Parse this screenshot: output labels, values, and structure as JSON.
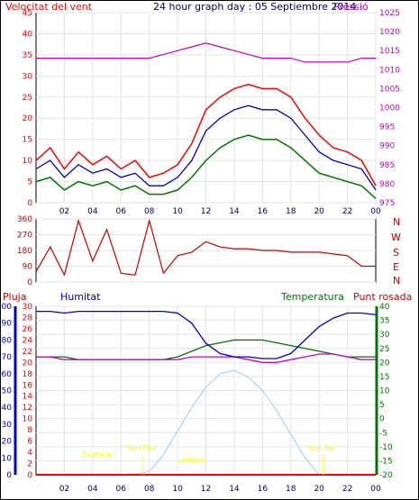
{
  "colors": {
    "wind_avg": "#0000cc",
    "wind_gust": "#ff0000",
    "wind_low": "#007700",
    "pressure": "#cc00cc",
    "direction": "#cc0000",
    "rain": "#ff0000",
    "humidity": "#0000cc",
    "temperature": "#007700",
    "dewpoint": "#cc00cc",
    "solar": "#99ccff",
    "sun_labels": "#ffff00",
    "frame": "#000000"
  },
  "labels": {
    "wind": "Velocitat del vent",
    "title": "24 hour graph day : 05 Septiembre 2014",
    "pressure": "Pressió",
    "rain": "Pluja",
    "humidity": "Humitat",
    "temperature": "Temperatura",
    "dewpoint": "Punt rosada",
    "sunrise": "Sun Rise",
    "sunset": "Sun Set",
    "daytime": "Daytime",
    "lowtide": "Lowtide"
  },
  "compass": [
    "N",
    "W",
    "S",
    "E",
    "N"
  ],
  "chart_data": [
    {
      "type": "line",
      "name_ref": "wind",
      "x_ticks": [
        "02",
        "04",
        "06",
        "08",
        "10",
        "12",
        "14",
        "16",
        "18",
        "20",
        "22",
        "00"
      ],
      "y_left_ticks": [
        "0",
        "5",
        "10",
        "15",
        "20",
        "25",
        "30",
        "35",
        "40",
        "45"
      ],
      "y_right_ticks": [
        "975",
        "980",
        "985",
        "990",
        "995",
        "1000",
        "1005",
        "1010",
        "1015",
        "1020",
        "1025"
      ],
      "ylim_left": [
        0,
        45
      ],
      "ylim_right": [
        975,
        1025
      ],
      "x_hours": [
        0,
        1,
        2,
        3,
        4,
        5,
        6,
        7,
        8,
        9,
        10,
        11,
        12,
        13,
        14,
        15,
        16,
        17,
        18,
        19,
        20,
        21,
        22,
        23,
        24
      ],
      "series": [
        {
          "key": "gust",
          "values": [
            10,
            13,
            8,
            12,
            9,
            11,
            8,
            10,
            6,
            7,
            9,
            14,
            22,
            25,
            27,
            28,
            27,
            27,
            25,
            20,
            16,
            13,
            12,
            10,
            4
          ]
        },
        {
          "key": "avg",
          "values": [
            8,
            10,
            6,
            9,
            7,
            8,
            6,
            7,
            4,
            4,
            6,
            10,
            17,
            20,
            22,
            23,
            22,
            22,
            20,
            16,
            12,
            10,
            9,
            8,
            3
          ]
        },
        {
          "key": "low",
          "values": [
            5,
            6,
            3,
            5,
            4,
            5,
            3,
            4,
            2,
            2,
            3,
            6,
            10,
            13,
            15,
            16,
            15,
            15,
            13,
            10,
            7,
            6,
            5,
            4,
            1
          ]
        },
        {
          "key": "pressure",
          "axis": "right",
          "values": [
            1013,
            1013,
            1013,
            1013,
            1013,
            1013,
            1013,
            1013,
            1013,
            1014,
            1015,
            1016,
            1017,
            1016,
            1015,
            1014,
            1013,
            1013,
            1013,
            1012,
            1012,
            1012,
            1012,
            1013,
            1013
          ]
        }
      ]
    },
    {
      "type": "line",
      "name_ref": "direction",
      "y_left_ticks": [
        "0",
        "90",
        "180",
        "270",
        "360"
      ],
      "ylim": [
        0,
        360
      ],
      "x_hours": [
        0,
        1,
        2,
        3,
        4,
        5,
        6,
        7,
        8,
        9,
        10,
        11,
        12,
        13,
        14,
        15,
        16,
        17,
        18,
        19,
        20,
        21,
        22,
        23,
        24
      ],
      "series": [
        {
          "key": "direction",
          "values": [
            60,
            200,
            40,
            350,
            120,
            300,
            50,
            40,
            350,
            50,
            150,
            170,
            230,
            200,
            190,
            190,
            180,
            180,
            170,
            170,
            170,
            160,
            150,
            90,
            90
          ]
        }
      ]
    },
    {
      "type": "line",
      "name_ref": "climate",
      "x_ticks": [
        "02",
        "04",
        "06",
        "08",
        "10",
        "12",
        "14",
        "16",
        "18",
        "20",
        "22",
        "00"
      ],
      "y_rain_ticks": [
        "0",
        "2",
        "4",
        "6",
        "8",
        "10",
        "12",
        "14",
        "16",
        "18",
        "20",
        "22",
        "24",
        "26",
        "28",
        "30"
      ],
      "y_hum_ticks": [
        "0",
        "10",
        "20",
        "30",
        "40",
        "50",
        "60",
        "70",
        "80",
        "90",
        "100"
      ],
      "y_temp_ticks": [
        "-20",
        "-15",
        "-10",
        "-5",
        "0",
        "5",
        "10",
        "15",
        "20",
        "25",
        "30",
        "35",
        "40"
      ],
      "ylim_humidity": [
        0,
        100
      ],
      "ylim_temperature": [
        -20,
        40
      ],
      "x_hours": [
        0,
        1,
        2,
        3,
        4,
        5,
        6,
        7,
        8,
        9,
        10,
        11,
        12,
        13,
        14,
        15,
        16,
        17,
        18,
        19,
        20,
        21,
        22,
        23,
        24
      ],
      "series": [
        {
          "key": "humidity",
          "values": [
            97,
            97,
            96,
            97,
            97,
            97,
            97,
            97,
            97,
            97,
            96,
            90,
            78,
            72,
            70,
            70,
            69,
            69,
            72,
            80,
            88,
            93,
            96,
            96,
            95
          ]
        },
        {
          "key": "temperature",
          "values": [
            22,
            22,
            22,
            21,
            21,
            21,
            21,
            21,
            21,
            21,
            22,
            24,
            26,
            27,
            28,
            28,
            28,
            27,
            26,
            25,
            24,
            23,
            22,
            22,
            22
          ]
        },
        {
          "key": "dewpoint",
          "values": [
            22,
            22,
            21,
            21,
            21,
            21,
            21,
            21,
            21,
            21,
            21,
            22,
            22,
            22,
            22,
            21,
            20,
            20,
            21,
            22,
            23,
            23,
            22,
            21,
            21
          ]
        },
        {
          "key": "solar",
          "axis": "humidity",
          "values": [
            0,
            0,
            0,
            0,
            0,
            0,
            0,
            0,
            2,
            12,
            26,
            40,
            52,
            60,
            62,
            58,
            50,
            38,
            24,
            10,
            0,
            0,
            0,
            0,
            0
          ]
        },
        {
          "key": "rain",
          "values": [
            0,
            0,
            0,
            0,
            0,
            0,
            0,
            0,
            0,
            0,
            0,
            0,
            0,
            0,
            0,
            0,
            0,
            0,
            0,
            0,
            0,
            0,
            0,
            0,
            0
          ]
        }
      ]
    }
  ]
}
